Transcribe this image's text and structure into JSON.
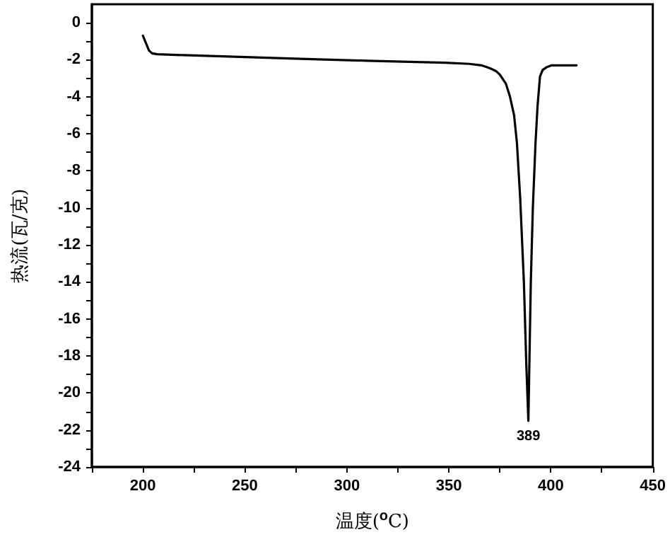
{
  "chart_data": {
    "type": "line",
    "xlabel": "温度($^{o}$C)",
    "ylabel": "热流(瓦/克)",
    "x": [
      200,
      201.5,
      203,
      204.5,
      207,
      220,
      250,
      280,
      310,
      348,
      360,
      366,
      370,
      373,
      375,
      378,
      380,
      382,
      383.4,
      385,
      386.8,
      388,
      389,
      390.2,
      391.2,
      392.5,
      393.5,
      394.7,
      396,
      398,
      400.4,
      405,
      412.6
    ],
    "series": [
      {
        "color": "#000000",
        "values": [
          -0.7,
          -1.1,
          -1.5,
          -1.65,
          -1.7,
          -1.75,
          -1.85,
          -1.96,
          -2.05,
          -2.16,
          -2.22,
          -2.3,
          -2.45,
          -2.6,
          -2.8,
          -3.3,
          -4.0,
          -5.0,
          -6.5,
          -9.5,
          -14,
          -18.5,
          -21.5,
          -14,
          -10,
          -6.5,
          -4.5,
          -2.9,
          -2.55,
          -2.4,
          -2.3,
          -2.3,
          -2.3
        ]
      }
    ],
    "xlim": [
      175,
      450
    ],
    "xticks": [
      {
        "value": 175,
        "label": null
      },
      200,
      {
        "value": 225,
        "label": null
      },
      250,
      {
        "value": 275,
        "label": null
      },
      300,
      {
        "value": 325,
        "label": null
      },
      350,
      {
        "value": 375,
        "label": null
      },
      400,
      {
        "value": 425,
        "label": null
      },
      450
    ],
    "ylim": [
      -24,
      1
    ],
    "yticks": [
      -24,
      {
        "value": -23,
        "label": null
      },
      -22,
      {
        "value": -21,
        "label": null
      },
      -20,
      {
        "value": -19,
        "label": null
      },
      -18,
      {
        "value": -17,
        "label": null
      },
      -16,
      {
        "value": -15,
        "label": null
      },
      -14,
      {
        "value": -13,
        "label": null
      },
      -12,
      {
        "value": -11,
        "label": null
      },
      -10,
      {
        "value": -9,
        "label": null
      },
      -8,
      {
        "value": -7,
        "label": null
      },
      -6,
      {
        "value": -5,
        "label": null
      },
      -4,
      {
        "value": -3,
        "label": null
      },
      -2,
      {
        "value": -1,
        "label": null
      },
      0
    ],
    "annotations": [
      {
        "text": "389",
        "x": 389,
        "y": -21.5
      }
    ],
    "grid": false,
    "marker": "none",
    "line_style": "solid"
  }
}
